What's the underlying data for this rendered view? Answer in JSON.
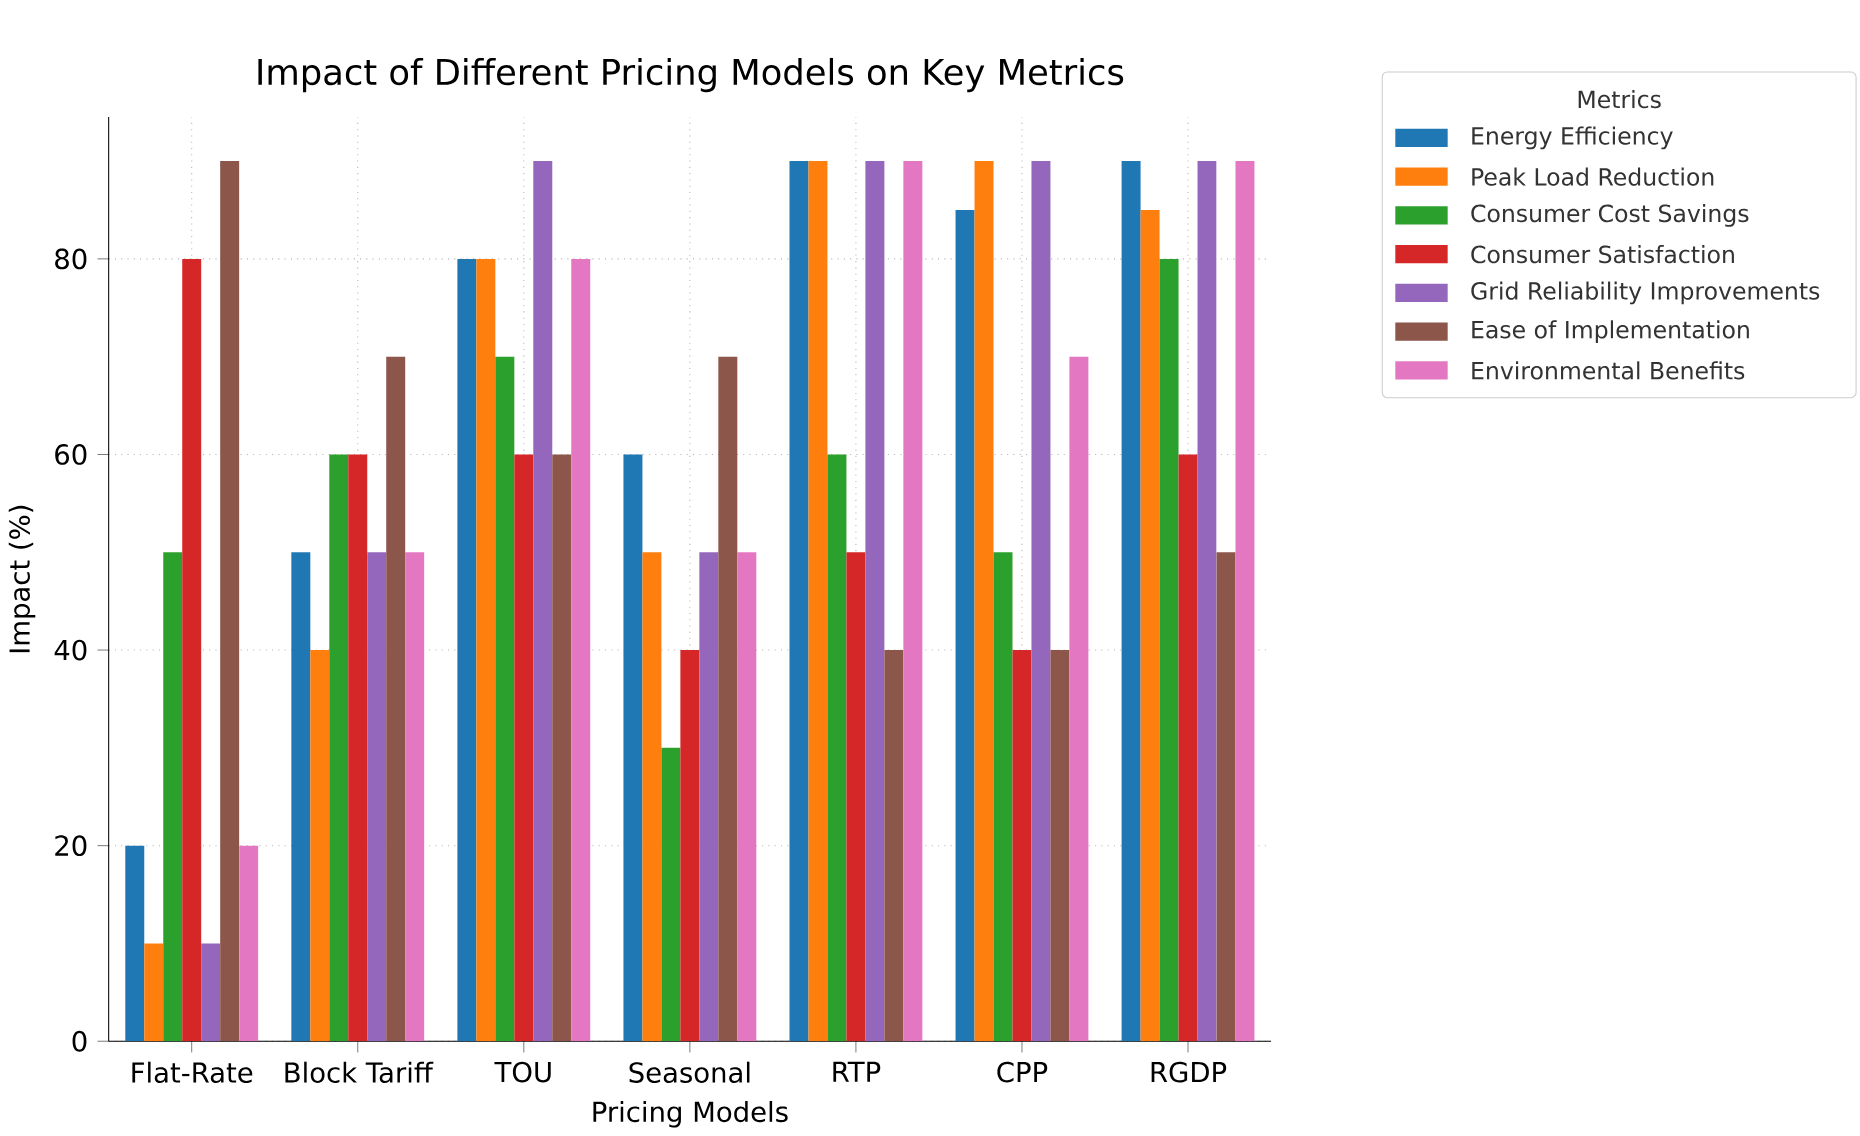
{
  "chart_data": {
    "type": "bar",
    "title": "Impact of Different Pricing Models on Key Metrics",
    "xlabel": "Pricing Models",
    "ylabel": "Impact (%)",
    "legend_title": "Metrics",
    "categories": [
      "Flat-Rate",
      "Block Tariff",
      "TOU",
      "Seasonal",
      "RTP",
      "CPP",
      "RGDP"
    ],
    "series": [
      {
        "name": "Energy Efficiency",
        "color": "#1f77b4",
        "values": [
          20,
          50,
          80,
          60,
          90,
          85,
          90
        ]
      },
      {
        "name": "Peak Load Reduction",
        "color": "#ff7f0e",
        "values": [
          10,
          40,
          80,
          50,
          90,
          90,
          85
        ]
      },
      {
        "name": "Consumer Cost Savings",
        "color": "#2ca02c",
        "values": [
          50,
          60,
          70,
          30,
          60,
          50,
          80
        ]
      },
      {
        "name": "Consumer Satisfaction",
        "color": "#d62728",
        "values": [
          80,
          60,
          60,
          40,
          50,
          40,
          60
        ]
      },
      {
        "name": "Grid Reliability Improvements",
        "color": "#9467bd",
        "values": [
          10,
          50,
          90,
          50,
          90,
          90,
          90
        ]
      },
      {
        "name": "Ease of Implementation",
        "color": "#8c564b",
        "values": [
          90,
          70,
          60,
          70,
          40,
          40,
          50
        ]
      },
      {
        "name": "Environmental Benefits",
        "color": "#e377c2",
        "values": [
          20,
          50,
          80,
          50,
          90,
          70,
          90
        ]
      }
    ],
    "ylim": [
      0,
      94.5
    ],
    "yticks": [
      0,
      20,
      40,
      60,
      80
    ],
    "grid": true,
    "legend": "top right"
  }
}
